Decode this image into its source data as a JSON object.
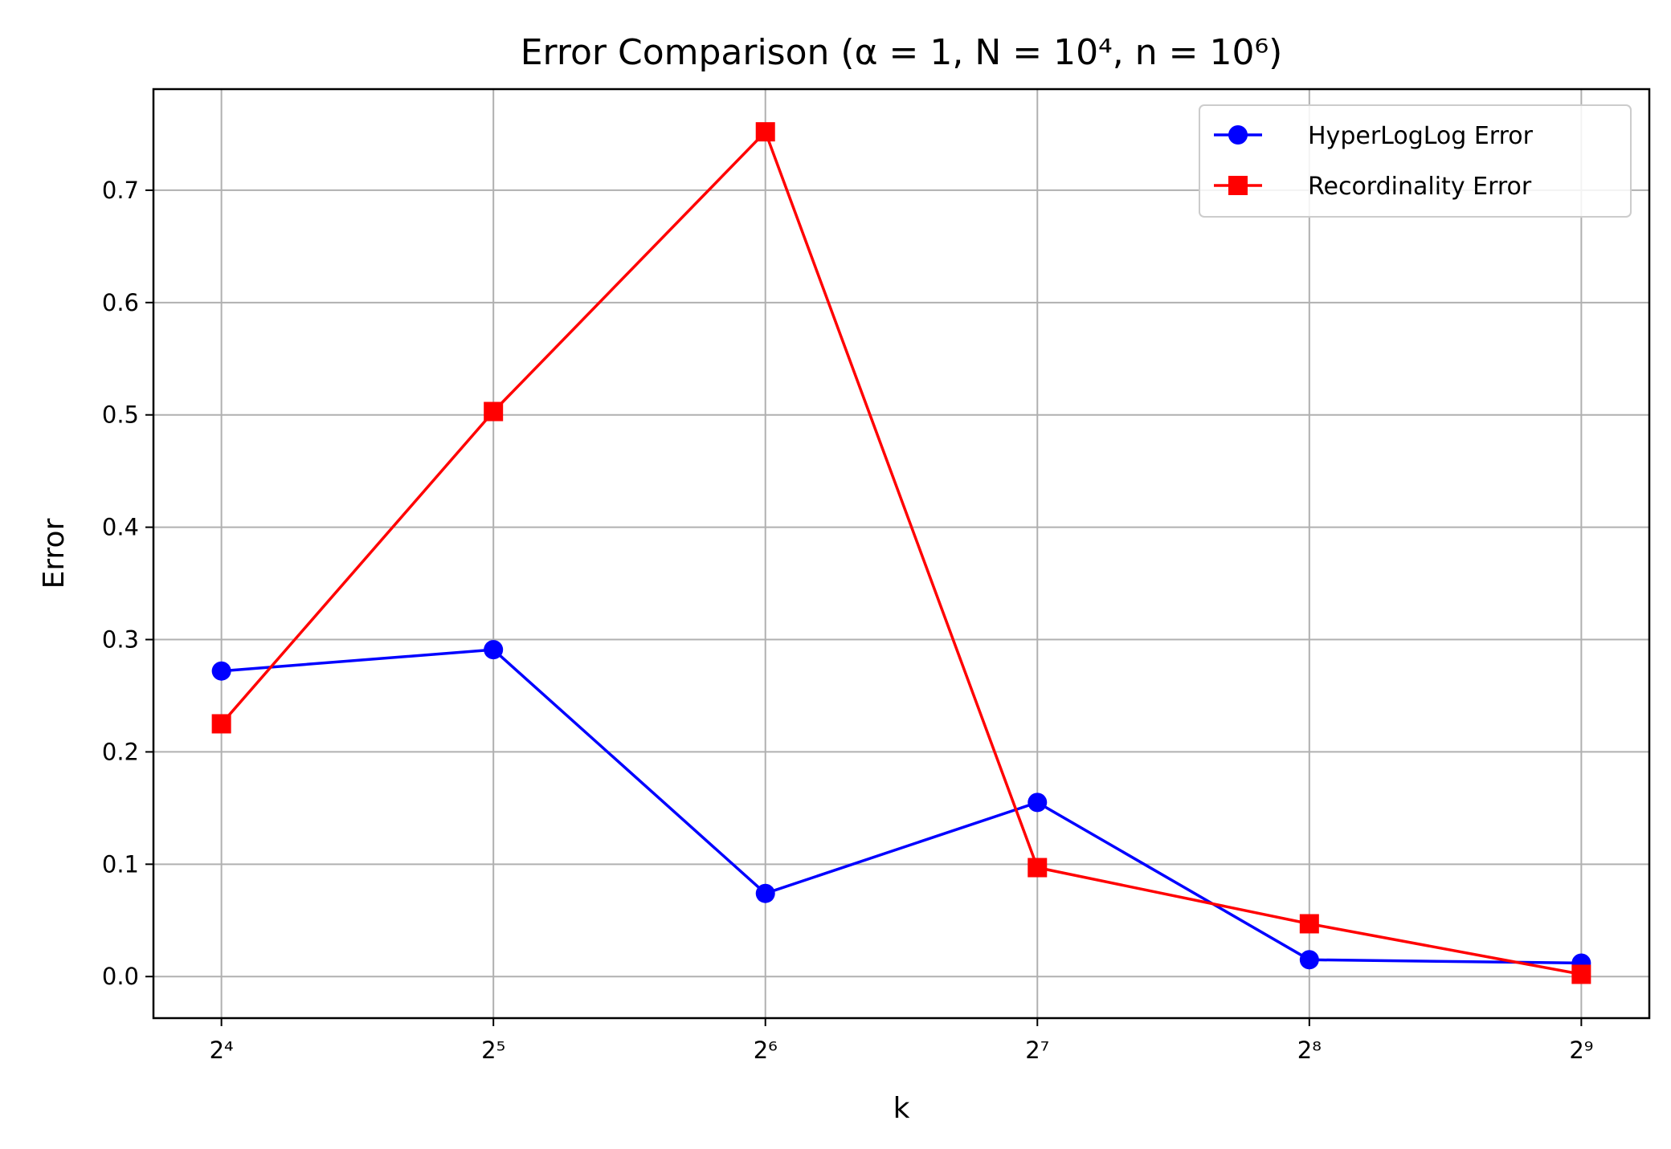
{
  "chart_data": {
    "type": "line",
    "title": "Error Comparison (α = 1, N = 10⁴, n = 10⁶)",
    "xlabel": "k",
    "ylabel": "Error",
    "x_scale": "log2",
    "x": [
      16,
      32,
      64,
      128,
      256,
      512
    ],
    "x_tick_labels": [
      "2⁴",
      "2⁵",
      "2⁶",
      "2⁷",
      "2⁸",
      "2⁹"
    ],
    "y_ticks": [
      0.0,
      0.1,
      0.2,
      0.3,
      0.4,
      0.5,
      0.6,
      0.7
    ],
    "y_tick_labels": [
      "0.0",
      "0.1",
      "0.2",
      "0.3",
      "0.4",
      "0.5",
      "0.6",
      "0.7"
    ],
    "ylim": [
      -0.037,
      0.79
    ],
    "grid": true,
    "legend_position": "top-right",
    "series": [
      {
        "name": "HyperLogLog Error",
        "color": "#0000ff",
        "marker": "circle",
        "values": [
          0.272,
          0.291,
          0.074,
          0.155,
          0.015,
          0.012
        ]
      },
      {
        "name": "Recordinality Error",
        "color": "#ff0000",
        "marker": "square",
        "values": [
          0.225,
          0.503,
          0.752,
          0.097,
          0.047,
          0.002
        ]
      }
    ]
  }
}
